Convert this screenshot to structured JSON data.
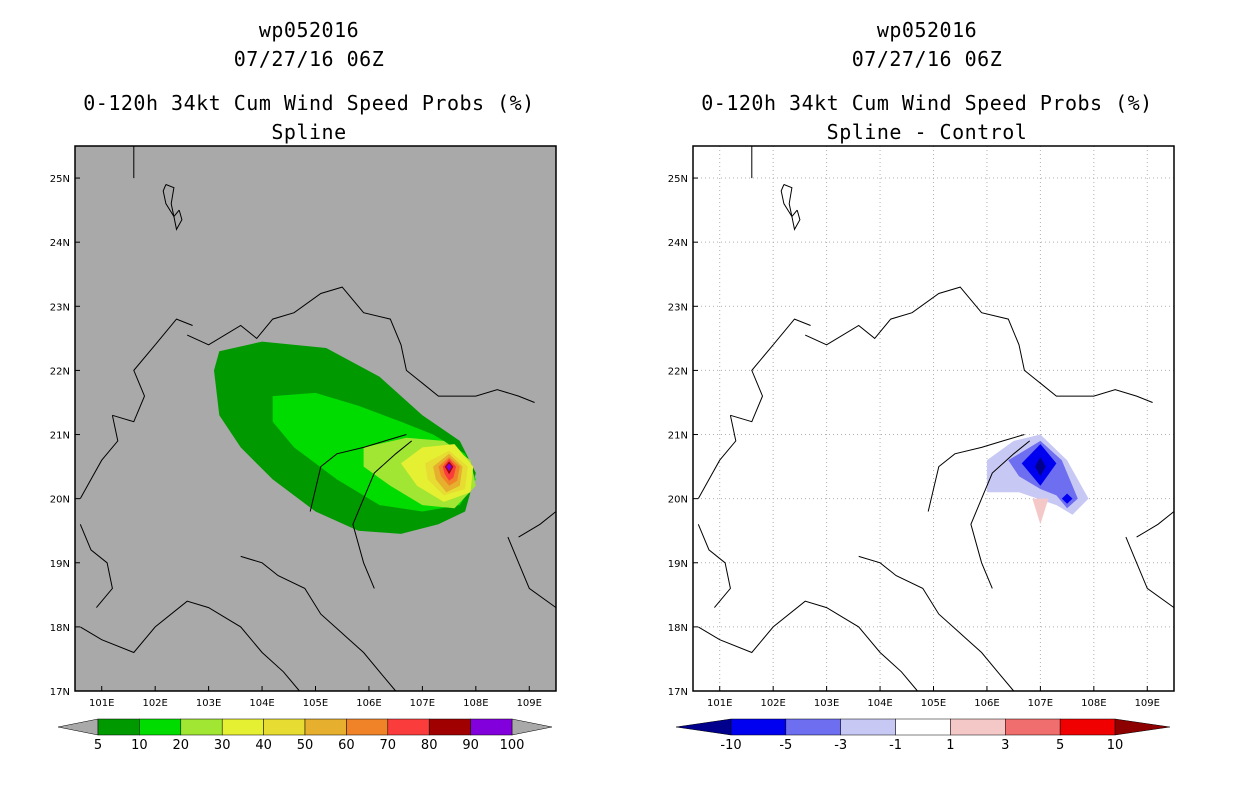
{
  "panels": [
    {
      "title_line1": "wp052016",
      "title_line2": "07/27/16 06Z",
      "title_line3": "0-120h 34kt Cum Wind Speed Probs (%)",
      "title_line4": "Spline"
    },
    {
      "title_line1": "wp052016",
      "title_line2": "07/27/16 06Z",
      "title_line3": "0-120h 34kt Cum Wind Speed Probs (%)",
      "title_line4": "Spline - Control"
    }
  ],
  "chart_data": [
    {
      "type": "heatmap",
      "title": "0-120h 34kt Cum Wind Speed Probs (%)",
      "subtitle": "Spline",
      "storm": "wp052016",
      "time": "07/27/16 06Z",
      "x_ticks": [
        "101E",
        "102E",
        "103E",
        "104E",
        "105E",
        "106E",
        "107E",
        "108E",
        "109E"
      ],
      "y_ticks": [
        "17N",
        "18N",
        "19N",
        "20N",
        "21N",
        "22N",
        "23N",
        "24N",
        "25N"
      ],
      "xlim": [
        100.5,
        109.5
      ],
      "ylim": [
        17,
        25.5
      ],
      "grid": false,
      "background_color": "#a9a9a9",
      "colorbar": {
        "labels": [
          "5",
          "10",
          "20",
          "30",
          "40",
          "50",
          "60",
          "70",
          "80",
          "90",
          "100"
        ],
        "colors": [
          "#009a00",
          "#00dc00",
          "#a0e632",
          "#e6f032",
          "#e6dc32",
          "#e6af2d",
          "#f08228",
          "#fa3c3c",
          "#a00000",
          "#8200dc"
        ]
      },
      "max_value_point": {
        "lon": 107.5,
        "lat": 20.5,
        "range": "90-100"
      }
    },
    {
      "type": "heatmap",
      "title": "0-120h 34kt Cum Wind Speed Probs (%)",
      "subtitle": "Spline - Control",
      "storm": "wp052016",
      "time": "07/27/16 06Z",
      "x_ticks": [
        "101E",
        "102E",
        "103E",
        "104E",
        "105E",
        "106E",
        "107E",
        "108E",
        "109E"
      ],
      "y_ticks": [
        "17N",
        "18N",
        "19N",
        "20N",
        "21N",
        "22N",
        "23N",
        "24N",
        "25N"
      ],
      "xlim": [
        100.5,
        109.5
      ],
      "ylim": [
        17,
        25.5
      ],
      "grid": true,
      "background_color": "#ffffff",
      "colorbar": {
        "labels": [
          "-10",
          "-5",
          "-3",
          "-1",
          "1",
          "3",
          "5",
          "10"
        ],
        "colors": [
          "#00008c",
          "#0000f0",
          "#6e6ef0",
          "#c8c8f5",
          "#ffffff",
          "#f5c8c8",
          "#f06e6e",
          "#f00000",
          "#8c0000"
        ]
      },
      "min_value_point": {
        "lon": 107.0,
        "lat": 20.5,
        "range": "< -10"
      }
    }
  ]
}
